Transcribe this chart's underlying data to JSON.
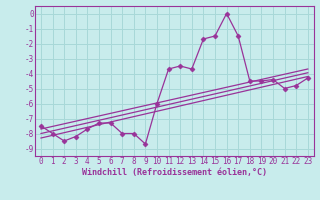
{
  "xlabel": "Windchill (Refroidissement éolien,°C)",
  "ylabel": "",
  "bg_color": "#c8ecec",
  "grid_color": "#a8d8d8",
  "line_color": "#993399",
  "spine_color": "#993399",
  "xlim": [
    -0.5,
    23.5
  ],
  "ylim": [
    -9.5,
    0.5
  ],
  "xticks": [
    0,
    1,
    2,
    3,
    4,
    5,
    6,
    7,
    8,
    9,
    10,
    11,
    12,
    13,
    14,
    15,
    16,
    17,
    18,
    19,
    20,
    21,
    22,
    23
  ],
  "yticks": [
    0,
    -1,
    -2,
    -3,
    -4,
    -5,
    -6,
    -7,
    -8,
    -9
  ],
  "hours": [
    0,
    1,
    2,
    3,
    4,
    5,
    6,
    7,
    8,
    9,
    10,
    11,
    12,
    13,
    14,
    15,
    16,
    17,
    18,
    19,
    20,
    21,
    22,
    23
  ],
  "values": [
    -7.5,
    -8.0,
    -8.5,
    -8.2,
    -7.7,
    -7.3,
    -7.3,
    -8.0,
    -8.0,
    -8.7,
    -6.0,
    -3.7,
    -3.5,
    -3.7,
    -1.7,
    -1.5,
    0.0,
    -1.5,
    -4.5,
    -4.5,
    -4.4,
    -5.0,
    -4.8,
    -4.3
  ],
  "reg_lines": [
    {
      "x0": 0,
      "y0": -8.3,
      "x1": 23,
      "y1": -4.2
    },
    {
      "x0": 0,
      "y0": -8.0,
      "x1": 23,
      "y1": -3.95
    },
    {
      "x0": 0,
      "y0": -7.7,
      "x1": 23,
      "y1": -3.7
    }
  ],
  "xlabel_fontsize": 6,
  "tick_fontsize": 5.5,
  "marker_size": 2.5
}
